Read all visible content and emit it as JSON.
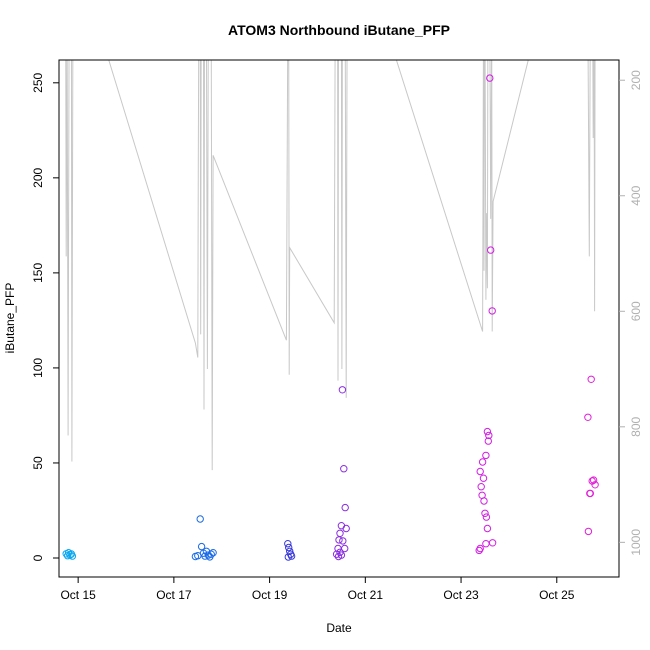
{
  "chart_data": {
    "type": "scatter",
    "title": "ATOM3 Northbound iButane_PFP",
    "xlabel": "Date",
    "ylabel": "iButane_PFP",
    "x_ticks": [
      "Oct 15",
      "Oct 17",
      "Oct 19",
      "Oct 21",
      "Oct 23",
      "Oct 25"
    ],
    "x_tick_days": [
      15,
      17,
      19,
      21,
      23,
      25
    ],
    "xlim_days": [
      14.6,
      26.3
    ],
    "ylim": [
      -10,
      262
    ],
    "y_ticks": [
      0,
      50,
      100,
      150,
      200,
      250
    ],
    "y2_ticks": [
      200,
      400,
      600,
      800,
      1000
    ],
    "y2lim_reversed": [
      1060,
      165
    ],
    "colors": {
      "axis": "#000000",
      "secondary_line": "#c8c8c8",
      "secondary_ticks": "#b0b0b0"
    },
    "points": [
      {
        "day": 14.75,
        "value": 2.2,
        "color": "#0aa6f0"
      },
      {
        "day": 14.78,
        "value": 1.2,
        "color": "#0aa6f0"
      },
      {
        "day": 14.8,
        "value": 2.8,
        "color": "#0aa6f0"
      },
      {
        "day": 14.83,
        "value": 1.6,
        "color": "#0aa6f0"
      },
      {
        "day": 14.86,
        "value": 2.1,
        "color": "#0aa6f0"
      },
      {
        "day": 14.88,
        "value": 1.0,
        "color": "#0aa6f0"
      },
      {
        "day": 17.45,
        "value": 0.8,
        "color": "#1a6be8"
      },
      {
        "day": 17.5,
        "value": 1.2,
        "color": "#1a6be8"
      },
      {
        "day": 17.55,
        "value": 20.5,
        "color": "#1a6be8"
      },
      {
        "day": 17.58,
        "value": 6.0,
        "color": "#1a6be8"
      },
      {
        "day": 17.62,
        "value": 2.5,
        "color": "#1a6be8"
      },
      {
        "day": 17.65,
        "value": 1.0,
        "color": "#1a6be8"
      },
      {
        "day": 17.68,
        "value": 3.5,
        "color": "#1a6be8"
      },
      {
        "day": 17.72,
        "value": 1.5,
        "color": "#1a6be8"
      },
      {
        "day": 17.75,
        "value": 0.6,
        "color": "#1a6be8"
      },
      {
        "day": 17.78,
        "value": 2.0,
        "color": "#1a6be8"
      },
      {
        "day": 17.82,
        "value": 2.8,
        "color": "#1a6be8"
      },
      {
        "day": 19.38,
        "value": 7.5,
        "color": "#3a3ad8"
      },
      {
        "day": 19.4,
        "value": 5.5,
        "color": "#3a3ad8"
      },
      {
        "day": 19.42,
        "value": 3.5,
        "color": "#3a3ad8"
      },
      {
        "day": 19.44,
        "value": 2.0,
        "color": "#3a3ad8"
      },
      {
        "day": 19.46,
        "value": 1.0,
        "color": "#3a3ad8"
      },
      {
        "day": 19.39,
        "value": 0.5,
        "color": "#3a3ad8"
      },
      {
        "day": 20.4,
        "value": 2.0,
        "color": "#8a2ee0"
      },
      {
        "day": 20.43,
        "value": 5.0,
        "color": "#8a2ee0"
      },
      {
        "day": 20.45,
        "value": 9.5,
        "color": "#8a2ee0"
      },
      {
        "day": 20.47,
        "value": 13.0,
        "color": "#8a2ee0"
      },
      {
        "day": 20.5,
        "value": 17.0,
        "color": "#8a2ee0"
      },
      {
        "day": 20.52,
        "value": 88.5,
        "color": "#8a2ee0"
      },
      {
        "day": 20.55,
        "value": 47.0,
        "color": "#8a2ee0"
      },
      {
        "day": 20.58,
        "value": 26.5,
        "color": "#8a2ee0"
      },
      {
        "day": 20.6,
        "value": 15.5,
        "color": "#8a2ee0"
      },
      {
        "day": 20.53,
        "value": 9.0,
        "color": "#8a2ee0"
      },
      {
        "day": 20.57,
        "value": 5.0,
        "color": "#8a2ee0"
      },
      {
        "day": 20.5,
        "value": 1.5,
        "color": "#8a2ee0"
      },
      {
        "day": 20.44,
        "value": 0.8,
        "color": "#8a2ee0"
      },
      {
        "day": 20.47,
        "value": 3.0,
        "color": "#8a2ee0"
      },
      {
        "day": 23.38,
        "value": 4.0,
        "color": "#d21fe3"
      },
      {
        "day": 23.4,
        "value": 45.5,
        "color": "#d21fe3"
      },
      {
        "day": 23.42,
        "value": 37.5,
        "color": "#d21fe3"
      },
      {
        "day": 23.45,
        "value": 50.5,
        "color": "#d21fe3"
      },
      {
        "day": 23.47,
        "value": 42.0,
        "color": "#d21fe3"
      },
      {
        "day": 23.44,
        "value": 33.0,
        "color": "#d21fe3"
      },
      {
        "day": 23.48,
        "value": 30.0,
        "color": "#d21fe3"
      },
      {
        "day": 23.5,
        "value": 23.5,
        "color": "#d21fe3"
      },
      {
        "day": 23.52,
        "value": 54.0,
        "color": "#d21fe3"
      },
      {
        "day": 23.55,
        "value": 66.5,
        "color": "#d21fe3"
      },
      {
        "day": 23.57,
        "value": 61.5,
        "color": "#d21fe3"
      },
      {
        "day": 23.58,
        "value": 64.5,
        "color": "#d21fe3"
      },
      {
        "day": 23.6,
        "value": 252.5,
        "color": "#d21fe3"
      },
      {
        "day": 23.62,
        "value": 162.0,
        "color": "#d21fe3"
      },
      {
        "day": 23.65,
        "value": 130.0,
        "color": "#d21fe3"
      },
      {
        "day": 23.53,
        "value": 21.5,
        "color": "#d21fe3"
      },
      {
        "day": 23.55,
        "value": 15.5,
        "color": "#d21fe3"
      },
      {
        "day": 23.52,
        "value": 7.5,
        "color": "#d21fe3"
      },
      {
        "day": 23.66,
        "value": 8.0,
        "color": "#d21fe3"
      },
      {
        "day": 23.4,
        "value": 5.0,
        "color": "#d21fe3"
      },
      {
        "day": 25.65,
        "value": 74.0,
        "color": "#e31fd9"
      },
      {
        "day": 25.72,
        "value": 94.0,
        "color": "#e31fd9"
      },
      {
        "day": 25.74,
        "value": 40.5,
        "color": "#e31fd9"
      },
      {
        "day": 25.77,
        "value": 41.0,
        "color": "#e31fd9"
      },
      {
        "day": 25.8,
        "value": 38.5,
        "color": "#e31fd9"
      },
      {
        "day": 25.69,
        "value": 34.0,
        "color": "#e31fd9"
      },
      {
        "day": 25.7,
        "value": 34.0,
        "color": "#e31fd9"
      },
      {
        "day": 25.66,
        "value": 14.0,
        "color": "#e31fd9"
      }
    ],
    "secondary_line": [
      {
        "day": 14.74,
        "y2": 100
      },
      {
        "day": 14.75,
        "y2": 505
      },
      {
        "day": 14.77,
        "y2": 100
      },
      {
        "day": 14.79,
        "y2": 815
      },
      {
        "day": 14.81,
        "y2": 100
      },
      {
        "day": 14.86,
        "y2": 100
      },
      {
        "day": 14.87,
        "y2": 860
      },
      {
        "day": 14.89,
        "y2": 100
      },
      {
        "day": 15.4,
        "y2": 100
      },
      {
        "day": 17.45,
        "y2": 655
      },
      {
        "day": 17.5,
        "y2": 680
      },
      {
        "day": 17.51,
        "y2": 340
      },
      {
        "day": 17.52,
        "y2": 100
      },
      {
        "day": 17.55,
        "y2": 100
      },
      {
        "day": 17.56,
        "y2": 640
      },
      {
        "day": 17.57,
        "y2": 100
      },
      {
        "day": 17.62,
        "y2": 100
      },
      {
        "day": 17.63,
        "y2": 770
      },
      {
        "day": 17.64,
        "y2": 100
      },
      {
        "day": 17.68,
        "y2": 100
      },
      {
        "day": 17.7,
        "y2": 700
      },
      {
        "day": 17.72,
        "y2": 100
      },
      {
        "day": 17.78,
        "y2": 100
      },
      {
        "day": 17.8,
        "y2": 875
      },
      {
        "day": 17.82,
        "y2": 330
      },
      {
        "day": 19.35,
        "y2": 650
      },
      {
        "day": 19.38,
        "y2": 100
      },
      {
        "day": 19.4,
        "y2": 100
      },
      {
        "day": 19.41,
        "y2": 710
      },
      {
        "day": 19.42,
        "y2": 490
      },
      {
        "day": 20.35,
        "y2": 620
      },
      {
        "day": 20.37,
        "y2": 100
      },
      {
        "day": 20.42,
        "y2": 100
      },
      {
        "day": 20.43,
        "y2": 720
      },
      {
        "day": 20.44,
        "y2": 100
      },
      {
        "day": 20.5,
        "y2": 100
      },
      {
        "day": 20.51,
        "y2": 700
      },
      {
        "day": 20.52,
        "y2": 100
      },
      {
        "day": 20.58,
        "y2": 100
      },
      {
        "day": 20.6,
        "y2": 750
      },
      {
        "day": 20.62,
        "y2": 100
      },
      {
        "day": 21.4,
        "y2": 100
      },
      {
        "day": 23.45,
        "y2": 635
      },
      {
        "day": 23.47,
        "y2": 100
      },
      {
        "day": 23.48,
        "y2": 530
      },
      {
        "day": 23.49,
        "y2": 100
      },
      {
        "day": 23.5,
        "y2": 100
      },
      {
        "day": 23.52,
        "y2": 580
      },
      {
        "day": 23.53,
        "y2": 430
      },
      {
        "day": 23.55,
        "y2": 560
      },
      {
        "day": 23.56,
        "y2": 100
      },
      {
        "day": 23.6,
        "y2": 100
      },
      {
        "day": 23.62,
        "y2": 440
      },
      {
        "day": 23.64,
        "y2": 100
      },
      {
        "day": 23.65,
        "y2": 635
      },
      {
        "day": 23.67,
        "y2": 410
      },
      {
        "day": 24.6,
        "y2": 100
      },
      {
        "day": 25.65,
        "y2": 100
      },
      {
        "day": 25.68,
        "y2": 505
      },
      {
        "day": 25.7,
        "y2": 100
      },
      {
        "day": 25.75,
        "y2": 100
      },
      {
        "day": 25.76,
        "y2": 300
      },
      {
        "day": 25.77,
        "y2": 100
      },
      {
        "day": 25.78,
        "y2": 100
      },
      {
        "day": 25.79,
        "y2": 600
      },
      {
        "day": 25.8,
        "y2": 100
      }
    ]
  }
}
